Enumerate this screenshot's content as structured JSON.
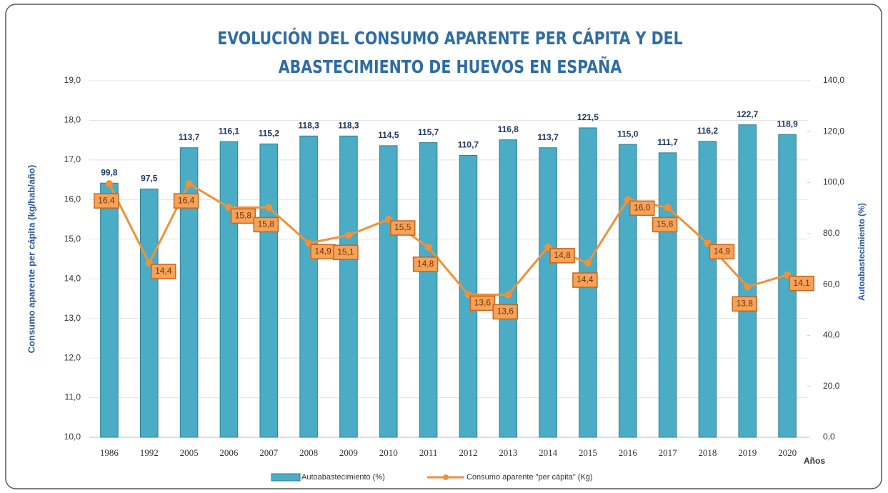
{
  "chart_data": {
    "type": "bar",
    "title": "EVOLUCIÓN DEL CONSUMO APARENTE PER CÁPITA Y DEL ABASTECIMIENTO DE HUEVOS EN ESPAÑA",
    "x_label": "Años",
    "y_label": "Consumo aparente per cápita (kg/hab/año)",
    "y2_label": "Autoabastecimiento (%)",
    "categories": [
      "1986",
      "1992",
      "2005",
      "2006",
      "2007",
      "2008",
      "2009",
      "2010",
      "2011",
      "2012",
      "2013",
      "2014",
      "2015",
      "2016",
      "2017",
      "2018",
      "2019",
      "2020"
    ],
    "series": [
      {
        "name": "Autoabastecimiento (%)",
        "type": "bar",
        "axis": "y2",
        "color": "#4bacc6",
        "values": [
          99.8,
          97.5,
          113.7,
          116.1,
          115.2,
          118.3,
          118.3,
          114.5,
          115.7,
          110.7,
          116.8,
          113.7,
          121.5,
          115.0,
          111.7,
          116.2,
          122.7,
          118.9
        ],
        "value_labels": [
          "99,8",
          "97,5",
          "113,7",
          "116,1",
          "115,2",
          "118,3",
          "118,3",
          "114,5",
          "115,7",
          "110,7",
          "116,8",
          "113,7",
          "121,5",
          "115,0",
          "111,7",
          "116,2",
          "122,7",
          "118,9"
        ]
      },
      {
        "name": "Consumo aparente \"per cápita\" (Kg)",
        "type": "line",
        "axis": "y",
        "color": "#f0913a",
        "values": [
          16.4,
          14.4,
          16.4,
          15.8,
          15.8,
          14.9,
          15.1,
          15.5,
          14.8,
          13.6,
          13.6,
          14.8,
          14.4,
          16.0,
          15.8,
          14.9,
          13.8,
          14.1
        ],
        "value_labels": [
          "16,4",
          "14,4",
          "16,4",
          "15,8",
          "15,8",
          "14,9",
          "15,1",
          "15,5",
          "14,8",
          "13,6",
          "13,6",
          "14,8",
          "14,4",
          "16,0",
          "15,8",
          "14,9",
          "13,8",
          "14,1"
        ]
      }
    ],
    "ylim": [
      10,
      19
    ],
    "yticks": [
      {
        "value": 10,
        "label": "10,0"
      },
      {
        "value": 11,
        "label": "11,0"
      },
      {
        "value": 12,
        "label": "12,0"
      },
      {
        "value": 13,
        "label": "13,0"
      },
      {
        "value": 14,
        "label": "14,0"
      },
      {
        "value": 15,
        "label": "15,0"
      },
      {
        "value": 16,
        "label": "16,0"
      },
      {
        "value": 17,
        "label": "17,0"
      },
      {
        "value": 18,
        "label": "18,0"
      },
      {
        "value": 19,
        "label": "19,0"
      }
    ],
    "y2lim": [
      0,
      140
    ],
    "y2ticks": [
      {
        "value": 0,
        "label": "0,0"
      },
      {
        "value": 20,
        "label": "20,0"
      },
      {
        "value": 40,
        "label": "40,0"
      },
      {
        "value": 60,
        "label": "60,0"
      },
      {
        "value": 80,
        "label": "80,0"
      },
      {
        "value": 100,
        "label": "100,0"
      },
      {
        "value": 120,
        "label": "120,0"
      },
      {
        "value": 140,
        "label": "140,0"
      }
    ],
    "grid": true,
    "legend": "bottom"
  }
}
